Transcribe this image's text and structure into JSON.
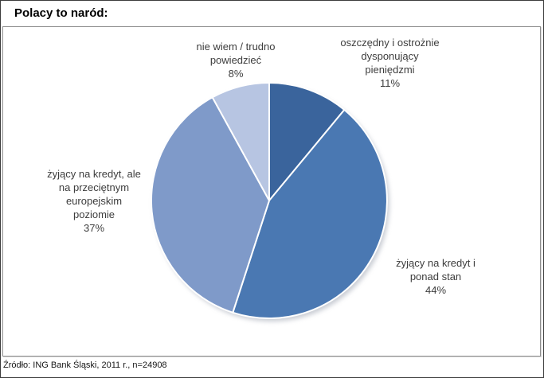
{
  "chart_data": {
    "type": "pie",
    "title": "Polacy to naród:",
    "source": "Źródło: ING Bank Śląski, 2011 r., n=24908",
    "unit": "%",
    "start_angle": "12 o'clock, clockwise",
    "legend": "none (outside data labels)",
    "categories": [
      "oszczędny i ostrożnie dysponujący pieniędzmi",
      "żyjący na kredyt i ponad stan",
      "żyjący na kredyt, ale na przeciętnym europejskim poziomie",
      "nie wiem / trudno powiedzieć"
    ],
    "values": [
      11,
      44,
      37,
      8
    ],
    "slices": [
      {
        "name": "oszczędny i ostrożnie dysponujący pieniędzmi",
        "label_lines": [
          "oszczędny i ostrożnie",
          "dysponujący",
          "pieniędzmi"
        ],
        "value": 11,
        "pct_label": "11%",
        "color": "#3A649C"
      },
      {
        "name": "żyjący na kredyt i ponad stan",
        "label_lines": [
          "żyjący na kredyt i",
          "ponad stan"
        ],
        "value": 44,
        "pct_label": "44%",
        "color": "#4A78B2"
      },
      {
        "name": "żyjący na kredyt, ale na przeciętnym europejskim poziomie",
        "label_lines": [
          "żyjący na kredyt, ale",
          "na przeciętnym",
          "europejskim",
          "poziomie"
        ],
        "value": 37,
        "pct_label": "37%",
        "color": "#7F9AC9"
      },
      {
        "name": "nie wiem / trudno powiedzieć",
        "label_lines": [
          "nie wiem / trudno",
          "powiedzieć"
        ],
        "value": 8,
        "pct_label": "8%",
        "color": "#B7C5E2"
      }
    ]
  }
}
